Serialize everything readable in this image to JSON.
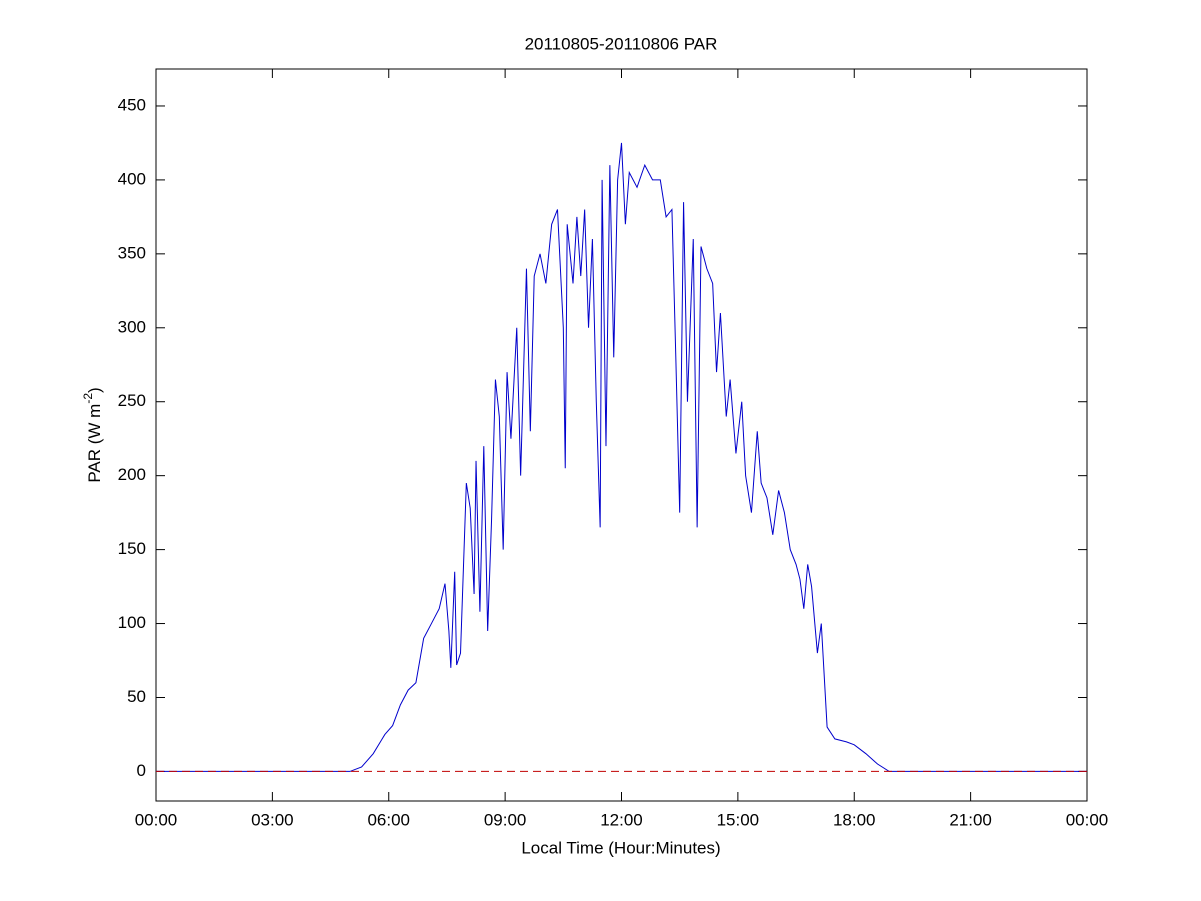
{
  "chart_data": {
    "type": "line",
    "title": "20110805-20110806 PAR",
    "xlabel": "Local Time (Hour:Minutes)",
    "ylabel": {
      "text": "PAR (W m",
      "superscript": "-2",
      "suffix": ")"
    },
    "xlim": [
      0,
      24
    ],
    "xticks": [
      {
        "value": 0,
        "label": "00:00"
      },
      {
        "value": 3,
        "label": "03:00"
      },
      {
        "value": 6,
        "label": "06:00"
      },
      {
        "value": 9,
        "label": "09:00"
      },
      {
        "value": 12,
        "label": "12:00"
      },
      {
        "value": 15,
        "label": "15:00"
      },
      {
        "value": 18,
        "label": "18:00"
      },
      {
        "value": 21,
        "label": "21:00"
      },
      {
        "value": 24,
        "label": "00:00"
      }
    ],
    "ylim": [
      -20,
      475
    ],
    "yticks": [
      0,
      50,
      100,
      150,
      200,
      250,
      300,
      350,
      400,
      450
    ],
    "color": "#0000cc",
    "reference_line": {
      "value": 0,
      "color": "#c00000",
      "dashed": true
    },
    "x": [
      0,
      5.0,
      5.3,
      5.6,
      5.9,
      6.1,
      6.3,
      6.5,
      6.7,
      6.9,
      7.1,
      7.3,
      7.45,
      7.55,
      7.6,
      7.7,
      7.75,
      7.85,
      8.0,
      8.1,
      8.2,
      8.25,
      8.35,
      8.45,
      8.55,
      8.65,
      8.75,
      8.85,
      8.95,
      9.05,
      9.15,
      9.3,
      9.4,
      9.55,
      9.65,
      9.75,
      9.9,
      10.05,
      10.2,
      10.35,
      10.5,
      10.55,
      10.6,
      10.75,
      10.85,
      10.95,
      11.05,
      11.15,
      11.25,
      11.35,
      11.45,
      11.5,
      11.6,
      11.7,
      11.8,
      11.9,
      12.0,
      12.1,
      12.2,
      12.4,
      12.6,
      12.8,
      13.0,
      13.15,
      13.3,
      13.4,
      13.5,
      13.6,
      13.7,
      13.85,
      13.95,
      14.05,
      14.2,
      14.35,
      14.45,
      14.55,
      14.7,
      14.8,
      14.95,
      15.1,
      15.2,
      15.35,
      15.5,
      15.6,
      15.75,
      15.9,
      16.05,
      16.2,
      16.35,
      16.5,
      16.6,
      16.7,
      16.8,
      16.9,
      17.0,
      17.05,
      17.15,
      17.3,
      17.5,
      17.8,
      18.0,
      18.3,
      18.6,
      18.9,
      24
    ],
    "values": [
      0,
      0,
      3,
      12,
      25,
      31,
      45,
      55,
      60,
      90,
      100,
      110,
      127,
      95,
      70,
      135,
      72,
      80,
      195,
      178,
      120,
      210,
      108,
      220,
      95,
      170,
      265,
      240,
      150,
      270,
      225,
      300,
      200,
      340,
      230,
      335,
      350,
      330,
      370,
      380,
      300,
      205,
      370,
      330,
      375,
      335,
      380,
      300,
      360,
      250,
      165,
      400,
      220,
      410,
      280,
      400,
      425,
      370,
      405,
      395,
      410,
      400,
      400,
      375,
      380,
      280,
      175,
      385,
      250,
      360,
      165,
      355,
      340,
      330,
      270,
      310,
      240,
      265,
      215,
      250,
      200,
      175,
      230,
      195,
      185,
      160,
      190,
      175,
      150,
      140,
      130,
      110,
      140,
      125,
      95,
      80,
      100,
      30,
      22,
      20,
      18,
      12,
      5,
      0,
      0
    ]
  }
}
